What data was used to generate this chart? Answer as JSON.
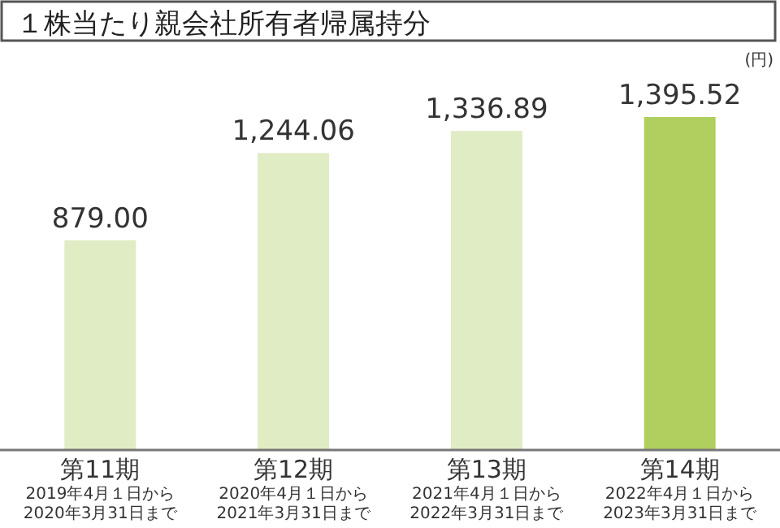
{
  "chart_data": {
    "type": "bar",
    "title": "１株当たり親会社所有者帰属持分",
    "ylabel": "(円)",
    "categories": [
      "第11期\n2019年4月１日から\n2020年3月31日まで",
      "第12期\n2020年4月１日から\n2021年3月31日まで",
      "第13期\n2021年4月１日から\n2022年3月31日まで",
      "第14期\n2022年4月１日から\n2023年3月31日まで"
    ],
    "values": [
      879.0,
      1244.06,
      1336.89,
      1395.52
    ],
    "value_labels": [
      "879.00",
      "1,244.06",
      "1,336.89",
      "1,395.52"
    ],
    "colors": [
      "#e0ecc4",
      "#e0ecc4",
      "#e0ecc4",
      "#b0cf5e"
    ]
  }
}
